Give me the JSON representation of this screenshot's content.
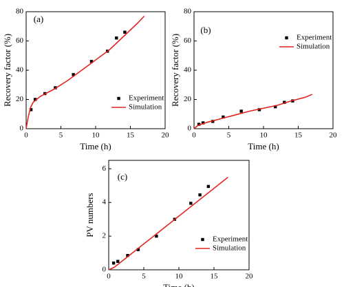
{
  "chart_data": [
    {
      "type": "line",
      "annotation": "(a)",
      "xlabel": "Time (h)",
      "ylabel": "Recovery factor (%)",
      "xlim": [
        0,
        20
      ],
      "xticks": [
        0,
        5,
        10,
        15,
        20
      ],
      "ylim": [
        0,
        80
      ],
      "yticks": [
        0,
        20,
        40,
        60,
        80
      ],
      "legend": "lower right",
      "series": [
        {
          "name": "Experiment",
          "color": "#000000",
          "mode": "markers",
          "x": [
            0.7,
            1.3,
            2.7,
            4.2,
            6.8,
            9.4,
            11.7,
            13,
            14.2
          ],
          "values": [
            13,
            20,
            24,
            28,
            37,
            46,
            53,
            62,
            66
          ]
        },
        {
          "name": "Simulation",
          "color": "#e3231f",
          "mode": "line",
          "x": [
            0,
            0.3,
            0.6,
            1,
            2,
            4,
            6,
            8,
            10,
            12,
            14,
            16,
            17
          ],
          "values": [
            0,
            8,
            14,
            18,
            22,
            27,
            33,
            40,
            47,
            54,
            63,
            72,
            77
          ]
        }
      ]
    },
    {
      "type": "line",
      "annotation": "(b)",
      "xlabel": "Time (h)",
      "ylabel": "Recovery factor (%)",
      "xlim": [
        0,
        20
      ],
      "xticks": [
        0,
        5,
        10,
        15,
        20
      ],
      "ylim": [
        0,
        80
      ],
      "yticks": [
        0,
        20,
        40,
        60,
        80
      ],
      "legend": "upper right",
      "series": [
        {
          "name": "Experiment",
          "color": "#000000",
          "mode": "markers",
          "x": [
            0.7,
            1.3,
            2.7,
            4.2,
            6.8,
            9.4,
            11.7,
            13,
            14.2
          ],
          "values": [
            3,
            4,
            5,
            8,
            12,
            13,
            15,
            18,
            19
          ]
        },
        {
          "name": "Simulation",
          "color": "#e3231f",
          "mode": "line",
          "x": [
            0,
            0.5,
            1,
            2,
            4,
            6,
            8,
            10,
            12,
            14,
            16,
            17
          ],
          "values": [
            0,
            2,
            3,
            4.5,
            7,
            9.5,
            12,
            14,
            16,
            19,
            21.5,
            23.5
          ]
        }
      ]
    },
    {
      "type": "line",
      "annotation": "(c)",
      "xlabel": "Time (h)",
      "ylabel": "PV numbers",
      "xlim": [
        0,
        20
      ],
      "xticks": [
        0,
        5,
        10,
        15,
        20
      ],
      "ylim": [
        0,
        6.5
      ],
      "yticks": [
        0,
        2,
        4,
        6
      ],
      "legend": "lower right",
      "series": [
        {
          "name": "Experiment",
          "color": "#000000",
          "mode": "markers",
          "x": [
            0.7,
            1.3,
            2.7,
            4.2,
            6.8,
            9.4,
            11.7,
            13,
            14.2
          ],
          "values": [
            0.4,
            0.5,
            0.85,
            1.2,
            2.0,
            3.0,
            3.95,
            4.45,
            4.95
          ]
        },
        {
          "name": "Simulation",
          "color": "#e3231f",
          "mode": "line",
          "x": [
            0,
            0.8,
            17
          ],
          "values": [
            0,
            0.15,
            5.5
          ]
        }
      ]
    }
  ]
}
